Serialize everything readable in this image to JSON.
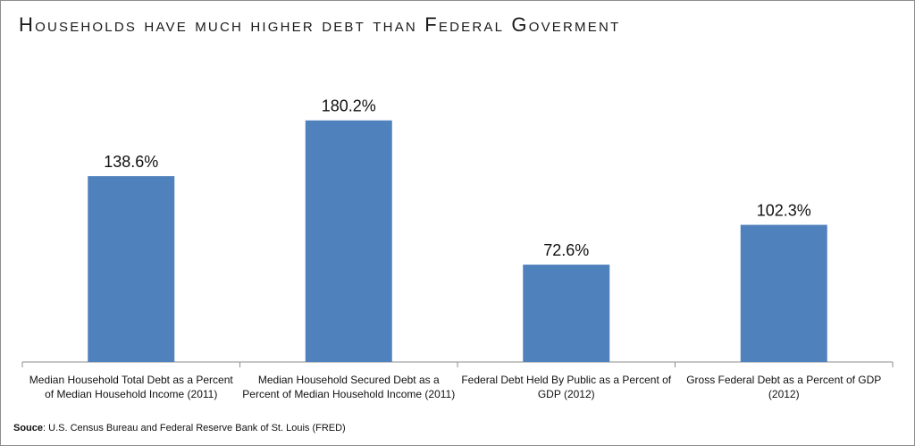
{
  "chart_data": {
    "type": "bar",
    "title": "Households have much higher debt than Federal Goverment",
    "categories": [
      "Median Household Total Debt as a Percent of Median Household Income (2011)",
      "Median Household Secured Debt as a Percent of Median Household Income (2011)",
      "Federal Debt Held By Public as a Percent of GDP (2012)",
      "Gross Federal Debt as a Percent of GDP (2012)"
    ],
    "values": [
      138.6,
      180.2,
      72.6,
      102.3
    ],
    "data_labels": [
      "138.6%",
      "180.2%",
      "72.6%",
      "102.3%"
    ],
    "ylim": [
      0,
      200
    ],
    "grid": false,
    "legend": "none",
    "colors": {
      "bar": "#4f81bd"
    }
  },
  "source": {
    "label": "Souce",
    "text": ": U.S. Census Bureau and Federal Reserve Bank of St. Louis (FRED)"
  }
}
